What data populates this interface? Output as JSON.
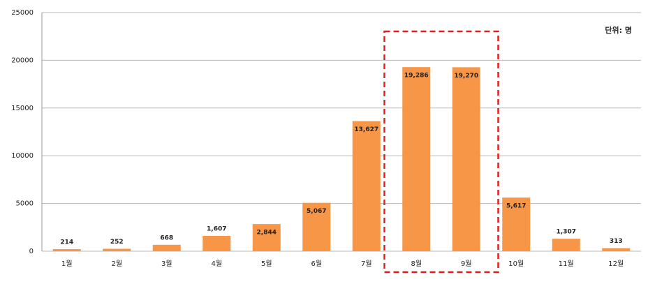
{
  "chart_data": {
    "type": "bar",
    "annotation": "단위: 명",
    "categories": [
      "1월",
      "2월",
      "3월",
      "4월",
      "5월",
      "6월",
      "7월",
      "8월",
      "9월",
      "10월",
      "11월",
      "12월"
    ],
    "values": [
      214,
      252,
      668,
      1607,
      2844,
      5067,
      13627,
      19286,
      19270,
      5617,
      1307,
      313
    ],
    "value_labels": [
      "214",
      "252",
      "668",
      "1,607",
      "2,844",
      "5,067",
      "13,627",
      "19,286",
      "19,270",
      "5,617",
      "1,307",
      "313"
    ],
    "color": "#f79646",
    "ylim": [
      0,
      25000
    ],
    "yticks": [
      0,
      5000,
      10000,
      15000,
      20000,
      25000
    ],
    "grid": true
  }
}
